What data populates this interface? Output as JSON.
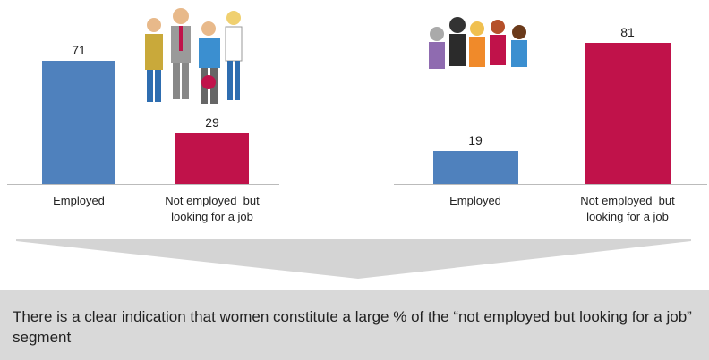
{
  "chart_data": [
    {
      "type": "bar",
      "categories": [
        "Employed",
        "Not employed  but looking for a job"
      ],
      "values": [
        71,
        29
      ],
      "colors": [
        "#4f81bd",
        "#c0124a"
      ]
    },
    {
      "type": "bar",
      "categories": [
        "Employed",
        "Not employed  but looking for a job"
      ],
      "values": [
        19,
        81
      ],
      "colors": [
        "#4f81bd",
        "#c0124a"
      ]
    }
  ],
  "conclusion": "There is a clear indication that women constitute a large % of the “not employed but looking for a job” segment"
}
